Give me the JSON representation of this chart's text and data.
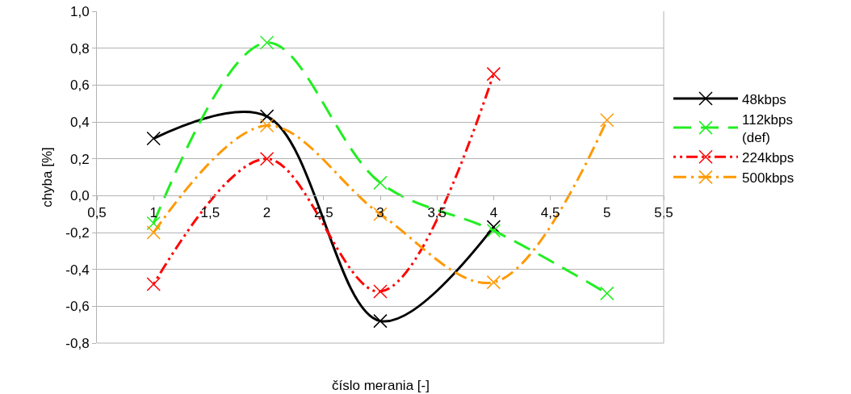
{
  "chart_data": {
    "type": "line",
    "xlabel": "číslo merania [-]",
    "ylabel": "chyba [%]",
    "xlim": [
      0.5,
      5.5
    ],
    "xticks": [
      {
        "value": 0.5,
        "label": "0,5"
      },
      1,
      {
        "value": 1.5,
        "label": "1,5"
      },
      2,
      {
        "value": 2.5,
        "label": "2,5"
      },
      3,
      {
        "value": 3.5,
        "label": "3,5"
      },
      4,
      {
        "value": 4.5,
        "label": "4,5"
      },
      5,
      {
        "value": 5.5,
        "label": "5,5"
      }
    ],
    "ylim": [
      -0.8,
      1.0
    ],
    "yticks": [
      {
        "value": -0.8,
        "label": "-0,8"
      },
      {
        "value": -0.6,
        "label": "-0,6"
      },
      {
        "value": -0.4,
        "label": "-0,4"
      },
      {
        "value": -0.2,
        "label": "-0,2"
      },
      {
        "value": 0,
        "label": "0,0"
      },
      {
        "value": 0.2,
        "label": "0,2"
      },
      {
        "value": 0.4,
        "label": "0,4"
      },
      {
        "value": 0.6,
        "label": "0,6"
      },
      {
        "value": 0.8,
        "label": "0,8"
      },
      {
        "value": 1.0,
        "label": "1,0"
      }
    ],
    "grid": "y",
    "legend": "right",
    "marker": "cross",
    "series": [
      {
        "name": "48kbps",
        "color": "#000000",
        "line_style": "solid",
        "x": [
          1,
          2,
          3,
          4
        ],
        "values": [
          0.31,
          0.43,
          -0.68,
          -0.17
        ]
      },
      {
        "name": "112kbps\n(def)",
        "color": "#22ee22",
        "line_style": "dashed",
        "x": [
          1,
          2,
          3,
          4,
          5
        ],
        "values": [
          -0.15,
          0.83,
          0.07,
          -0.19,
          -0.53
        ]
      },
      {
        "name": "224kbps",
        "color": "#ff0000",
        "line_style": "dotted",
        "x": [
          1,
          2,
          3,
          4
        ],
        "values": [
          -0.48,
          0.2,
          -0.52,
          0.66
        ]
      },
      {
        "name": "500kbps",
        "color": "#ff9900",
        "line_style": "dashed",
        "x": [
          1,
          2,
          3,
          4,
          5
        ],
        "values": [
          -0.2,
          0.38,
          -0.1,
          -0.47,
          0.41
        ]
      }
    ]
  }
}
